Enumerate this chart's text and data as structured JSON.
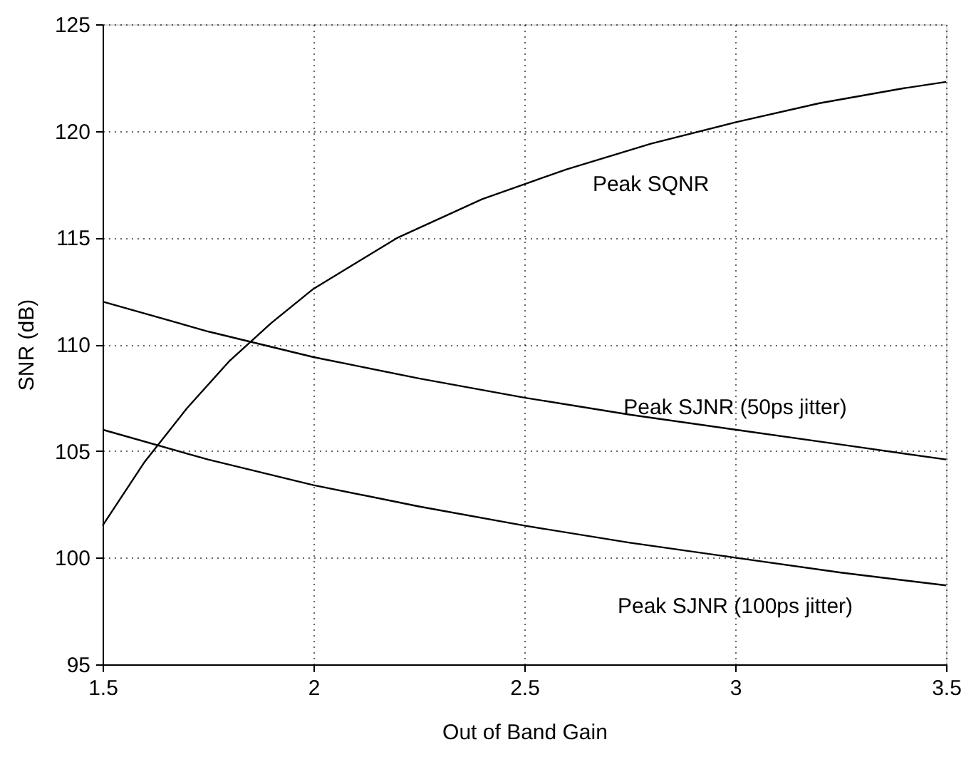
{
  "chart_data": {
    "type": "line",
    "xlabel": "Out of Band Gain",
    "ylabel": "SNR (dB)",
    "xlim": [
      1.5,
      3.5
    ],
    "xticks": [
      1.5,
      2,
      2.5,
      3,
      3.5
    ],
    "ylim": [
      95,
      125
    ],
    "yticks": [
      95,
      100,
      105,
      110,
      115,
      120,
      125
    ],
    "grid": true,
    "line_style": "solid",
    "marker": "none",
    "series": [
      {
        "name": "Peak SQNR",
        "color": "#000000",
        "x": [
          1.5,
          1.6,
          1.7,
          1.8,
          1.9,
          2.0,
          2.2,
          2.4,
          2.6,
          2.8,
          3.0,
          3.2,
          3.4,
          3.5
        ],
        "values": [
          101.5,
          104.5,
          107,
          109.2,
          111,
          112.6,
          115,
          116.8,
          118.2,
          119.4,
          120.4,
          121.3,
          122,
          122.3
        ]
      },
      {
        "name": "Peak SJNR (50ps jitter)",
        "color": "#000000",
        "x": [
          1.5,
          1.75,
          2,
          2.25,
          2.5,
          2.75,
          3,
          3.25,
          3.5
        ],
        "values": [
          112,
          110.6,
          109.4,
          108.4,
          107.5,
          106.7,
          106,
          105.3,
          104.6
        ]
      },
      {
        "name": "Peak SJNR (100ps jitter)",
        "color": "#000000",
        "x": [
          1.5,
          1.75,
          2,
          2.25,
          2.5,
          2.75,
          3,
          3.25,
          3.5
        ],
        "values": [
          106,
          104.6,
          103.4,
          102.4,
          101.5,
          100.7,
          100,
          99.3,
          98.7
        ]
      }
    ]
  }
}
